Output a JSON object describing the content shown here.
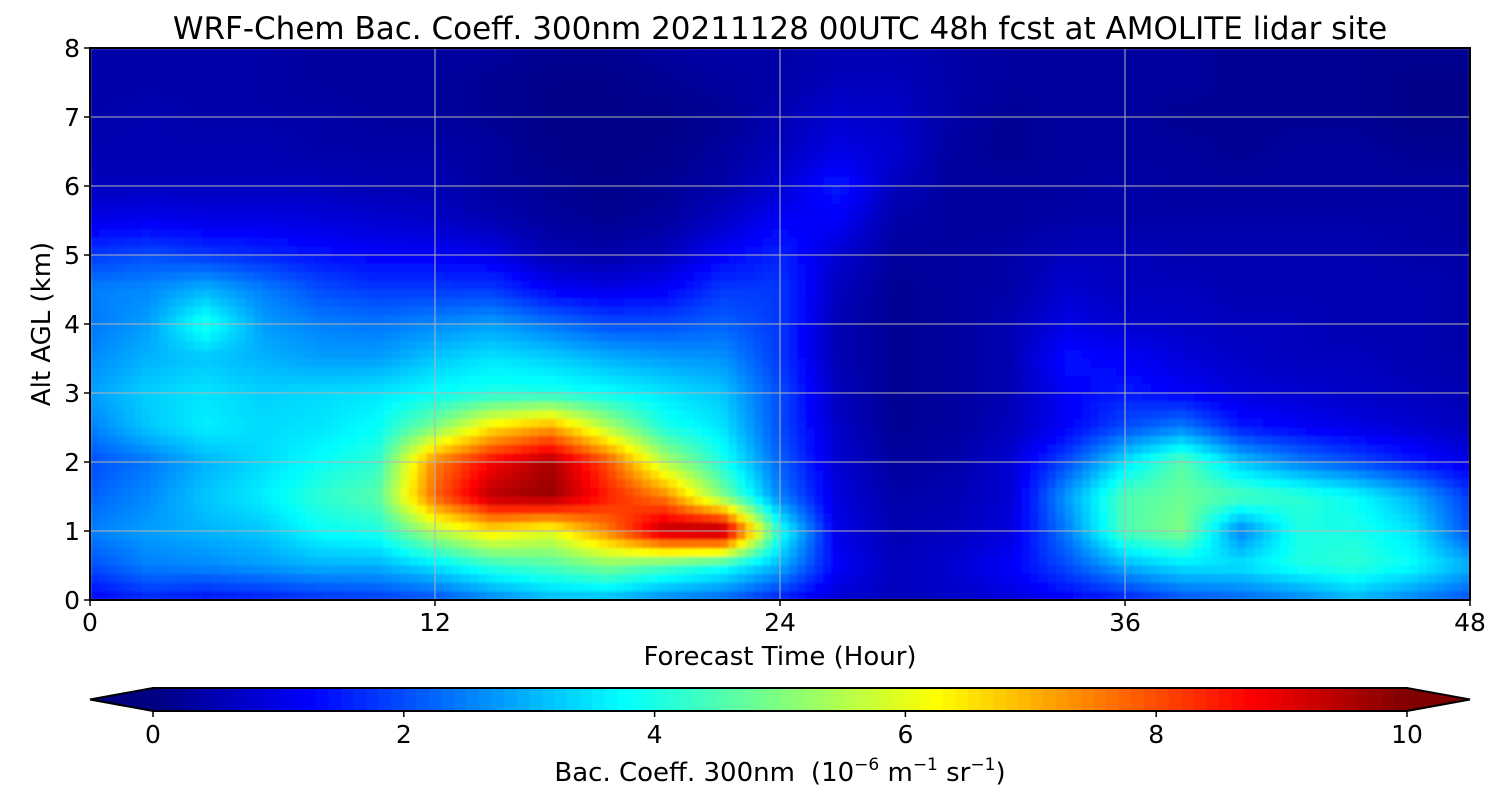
{
  "chart_data": {
    "type": "heatmap",
    "title": "WRF-Chem Bac. Coeff. 300nm  20211128 00UTC 48h fcst at AMOLITE lidar site",
    "xlabel": "Forecast Time (Hour)",
    "ylabel": "Alt AGL (km)",
    "xlim": [
      0,
      48
    ],
    "ylim": [
      0,
      8
    ],
    "x_ticks": [
      0,
      12,
      24,
      36,
      48
    ],
    "y_ticks": [
      0,
      1,
      2,
      3,
      4,
      5,
      6,
      7,
      8
    ],
    "grid": true,
    "colormap": "jet",
    "colorbar": {
      "orientation": "horizontal",
      "placement": "bottom",
      "range": [
        0,
        10
      ],
      "ticks": [
        0,
        2,
        4,
        6,
        8,
        10
      ],
      "extend": "both",
      "label_main": "Bac. Coeff. 300nm",
      "label_unit_parts": [
        "(10",
        "−6",
        " m",
        "−1",
        " sr",
        "−1",
        ")"
      ]
    },
    "x": [
      0,
      2,
      4,
      6,
      8,
      10,
      12,
      14,
      16,
      18,
      20,
      22,
      24,
      26,
      28,
      30,
      32,
      34,
      36,
      38,
      40,
      42,
      44,
      46,
      48
    ],
    "y": [
      0,
      0.5,
      1,
      1.5,
      2,
      2.5,
      3,
      3.5,
      4,
      4.5,
      5,
      5.5,
      6,
      6.5,
      7,
      7.5,
      8
    ],
    "z": [
      [
        1.2,
        1.6,
        1.4,
        1.5,
        1.7,
        1.8,
        2.0,
        2.5,
        3.0,
        3.0,
        2.5,
        2.2,
        1.5,
        0.8,
        0.6,
        0.7,
        0.9,
        1.2,
        1.5,
        2.0,
        2.2,
        2.5,
        3.0,
        2.5,
        2.0
      ],
      [
        2.0,
        2.5,
        2.6,
        2.8,
        3.0,
        3.0,
        3.5,
        4.2,
        4.5,
        5.0,
        4.5,
        4.0,
        3.0,
        1.2,
        0.6,
        0.8,
        1.2,
        2.0,
        3.0,
        3.5,
        3.5,
        4.0,
        4.2,
        3.8,
        3.0
      ],
      [
        2.5,
        2.8,
        3.0,
        3.2,
        3.8,
        4.0,
        5.5,
        6.5,
        6.0,
        7.5,
        9.5,
        9.8,
        4.0,
        1.0,
        0.5,
        0.6,
        0.9,
        2.5,
        4.5,
        5.0,
        2.5,
        4.0,
        4.0,
        3.5,
        2.0
      ],
      [
        2.2,
        2.6,
        3.2,
        3.6,
        4.2,
        4.6,
        7.8,
        9.5,
        9.8,
        8.5,
        7.5,
        5.0,
        2.5,
        0.9,
        0.4,
        0.5,
        0.8,
        2.8,
        4.5,
        4.8,
        4.5,
        4.2,
        3.8,
        3.0,
        1.8
      ],
      [
        2.0,
        2.4,
        3.0,
        3.4,
        3.8,
        4.2,
        7.5,
        8.8,
        9.6,
        8.0,
        5.5,
        4.0,
        2.2,
        0.8,
        0.3,
        0.4,
        0.8,
        2.0,
        3.5,
        4.6,
        3.2,
        2.5,
        2.0,
        1.5,
        1.0
      ],
      [
        2.5,
        3.2,
        3.6,
        3.4,
        3.5,
        3.8,
        5.0,
        6.5,
        7.2,
        5.5,
        4.0,
        3.5,
        2.0,
        0.7,
        0.2,
        0.3,
        0.6,
        1.2,
        2.0,
        2.5,
        1.5,
        1.2,
        1.0,
        0.8,
        0.6
      ],
      [
        2.8,
        3.3,
        3.5,
        3.3,
        3.4,
        3.5,
        3.8,
        4.0,
        4.0,
        3.8,
        3.5,
        3.2,
        2.0,
        0.6,
        0.2,
        0.3,
        0.5,
        1.2,
        1.5,
        1.2,
        0.9,
        0.8,
        0.7,
        0.6,
        0.5
      ],
      [
        2.6,
        3.0,
        3.2,
        3.0,
        2.8,
        2.8,
        3.2,
        3.5,
        3.3,
        3.0,
        2.8,
        2.7,
        1.8,
        0.5,
        0.2,
        0.3,
        0.5,
        1.4,
        1.2,
        0.9,
        0.7,
        0.6,
        0.6,
        0.5,
        0.4
      ],
      [
        2.4,
        2.8,
        4.0,
        2.8,
        2.5,
        2.4,
        2.6,
        2.8,
        2.4,
        2.0,
        2.0,
        2.2,
        1.8,
        0.5,
        0.2,
        0.3,
        0.5,
        1.0,
        0.8,
        0.7,
        0.6,
        0.6,
        0.5,
        0.5,
        0.4
      ],
      [
        2.5,
        2.6,
        3.0,
        2.5,
        2.0,
        1.8,
        1.8,
        1.8,
        1.2,
        1.0,
        1.2,
        1.8,
        1.8,
        0.6,
        0.2,
        0.3,
        0.4,
        0.8,
        0.6,
        0.6,
        0.5,
        0.5,
        0.5,
        0.5,
        0.4
      ],
      [
        1.8,
        2.0,
        1.8,
        1.6,
        1.4,
        1.2,
        1.2,
        1.0,
        0.5,
        0.4,
        0.6,
        1.2,
        1.6,
        0.8,
        0.3,
        0.3,
        0.4,
        0.6,
        0.6,
        0.5,
        0.5,
        0.5,
        0.5,
        0.4,
        0.4
      ],
      [
        1.0,
        1.1,
        1.0,
        1.0,
        0.9,
        0.8,
        0.7,
        0.5,
        0.3,
        0.2,
        0.3,
        0.7,
        1.2,
        1.2,
        0.4,
        0.3,
        0.3,
        0.4,
        0.4,
        0.4,
        0.4,
        0.4,
        0.4,
        0.4,
        0.3
      ],
      [
        0.6,
        0.6,
        0.6,
        0.6,
        0.6,
        0.5,
        0.5,
        0.3,
        0.2,
        0.1,
        0.2,
        0.4,
        0.8,
        1.5,
        0.6,
        0.3,
        0.3,
        0.3,
        0.4,
        0.3,
        0.3,
        0.3,
        0.3,
        0.3,
        0.3
      ],
      [
        0.5,
        0.5,
        0.5,
        0.5,
        0.4,
        0.4,
        0.4,
        0.3,
        0.1,
        0.1,
        0.1,
        0.3,
        0.6,
        1.0,
        0.8,
        0.3,
        0.2,
        0.3,
        0.3,
        0.3,
        0.2,
        0.3,
        0.3,
        0.2,
        0.2
      ],
      [
        0.4,
        0.5,
        0.4,
        0.4,
        0.4,
        0.3,
        0.3,
        0.2,
        0.1,
        0.1,
        0.1,
        0.2,
        0.5,
        0.8,
        0.7,
        0.4,
        0.2,
        0.3,
        0.3,
        0.2,
        0.2,
        0.2,
        0.2,
        0.1,
        0.1
      ],
      [
        0.4,
        0.4,
        0.4,
        0.4,
        0.3,
        0.3,
        0.3,
        0.2,
        0.1,
        0.1,
        0.2,
        0.3,
        0.4,
        0.6,
        0.6,
        0.4,
        0.3,
        0.3,
        0.3,
        0.3,
        0.2,
        0.2,
        0.2,
        0.1,
        0.1
      ],
      [
        0.4,
        0.4,
        0.4,
        0.4,
        0.3,
        0.3,
        0.3,
        0.3,
        0.2,
        0.2,
        0.3,
        0.4,
        0.4,
        0.5,
        0.5,
        0.4,
        0.3,
        0.3,
        0.3,
        0.3,
        0.2,
        0.2,
        0.2,
        0.2,
        0.2
      ]
    ]
  }
}
